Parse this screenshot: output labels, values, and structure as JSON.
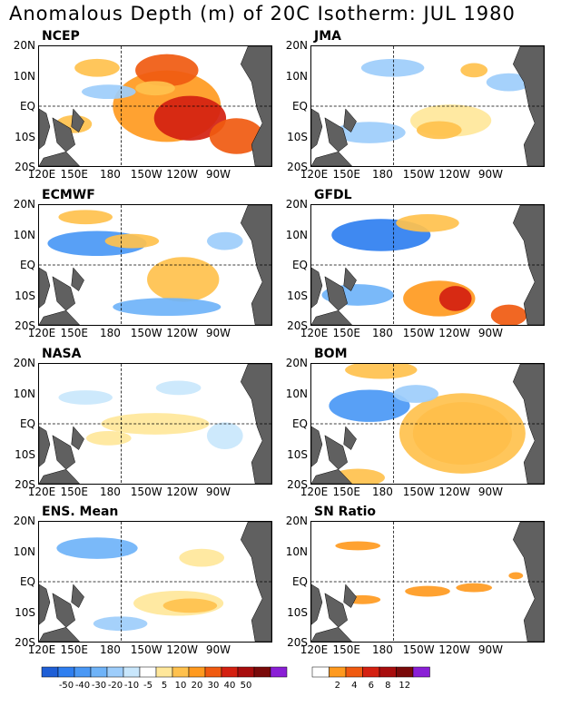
{
  "title": "Anomalous Depth (m) of 20C Isotherm: JUL 1980",
  "lat_labels": [
    "20N",
    "10N",
    "EQ",
    "10S",
    "20S"
  ],
  "lon_labels": [
    "120E",
    "150E",
    "180",
    "150W",
    "120W",
    "90W"
  ],
  "panels": [
    {
      "label": "NCEP"
    },
    {
      "label": "JMA"
    },
    {
      "label": "ECMWF"
    },
    {
      "label": "GFDL"
    },
    {
      "label": "NASA"
    },
    {
      "label": "BOM"
    },
    {
      "label": "ENS. Mean"
    },
    {
      "label": "SN Ratio"
    }
  ],
  "colorbar_depth": {
    "colors": [
      "#1f5fd6",
      "#2f7ff0",
      "#4a98f5",
      "#6fb3f8",
      "#9dcdfb",
      "#c9e7fc",
      "#ffffff",
      "#ffe79a",
      "#ffc14d",
      "#ff9a1f",
      "#f05a10",
      "#d42010",
      "#a80d0d",
      "#7a0a0a",
      "#8a1fd6"
    ],
    "labels": [
      "-50",
      "-40",
      "-30",
      "-20",
      "-10",
      "-5",
      "5",
      "10",
      "20",
      "30",
      "40",
      "50"
    ]
  },
  "colorbar_sn": {
    "colors": [
      "#ffffff",
      "#ff9a1f",
      "#f05a10",
      "#d42010",
      "#a80d0d",
      "#7a0a0a",
      "#8a1fd6"
    ],
    "labels": [
      "2",
      "4",
      "6",
      "8",
      "12"
    ]
  }
}
